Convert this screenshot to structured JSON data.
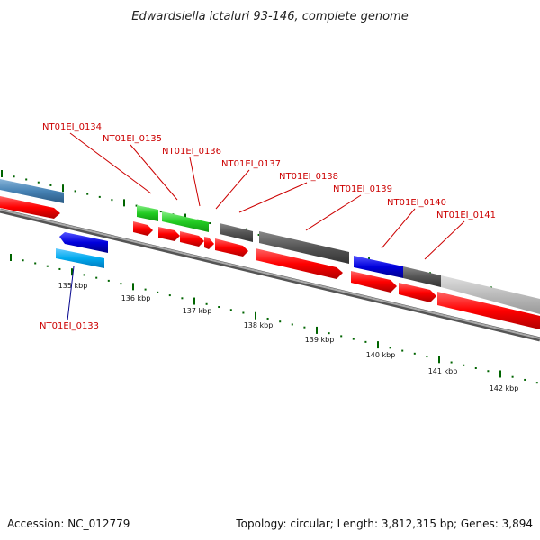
{
  "title": "Edwardsiella ictaluri 93-146, complete genome",
  "footer": {
    "accession": "Accession: NC_012779",
    "topology": "Topology: circular; Length: 3,812,315 bp; Genes: 3,894"
  },
  "scale_ticks": [
    "135 kbp",
    "136 kbp",
    "137 kbp",
    "138 kbp",
    "139 kbp",
    "140 kbp",
    "141 kbp",
    "142 kbp"
  ],
  "gene_labels": [
    {
      "text": "NT01EI_0134",
      "color": "#cc0000"
    },
    {
      "text": "NT01EI_0135",
      "color": "#cc0000"
    },
    {
      "text": "NT01EI_0136",
      "color": "#cc0000"
    },
    {
      "text": "NT01EI_0137",
      "color": "#cc0000"
    },
    {
      "text": "NT01EI_0138",
      "color": "#cc0000"
    },
    {
      "text": "NT01EI_0139",
      "color": "#cc0000"
    },
    {
      "text": "NT01EI_0140",
      "color": "#cc0000"
    },
    {
      "text": "NT01EI_0141",
      "color": "#cc0000"
    },
    {
      "text": "NT01EI_0133",
      "color": "#00008b"
    }
  ],
  "colors": {
    "cds": "#ff0000",
    "trna": "#22cc22",
    "gc_dark": "#555555",
    "gc_light": "#bbbbbb",
    "blue": "#0000dd",
    "cyan": "#00aaee",
    "steel": "#4682b4",
    "tick": "#006400",
    "backbone": "#777777"
  }
}
